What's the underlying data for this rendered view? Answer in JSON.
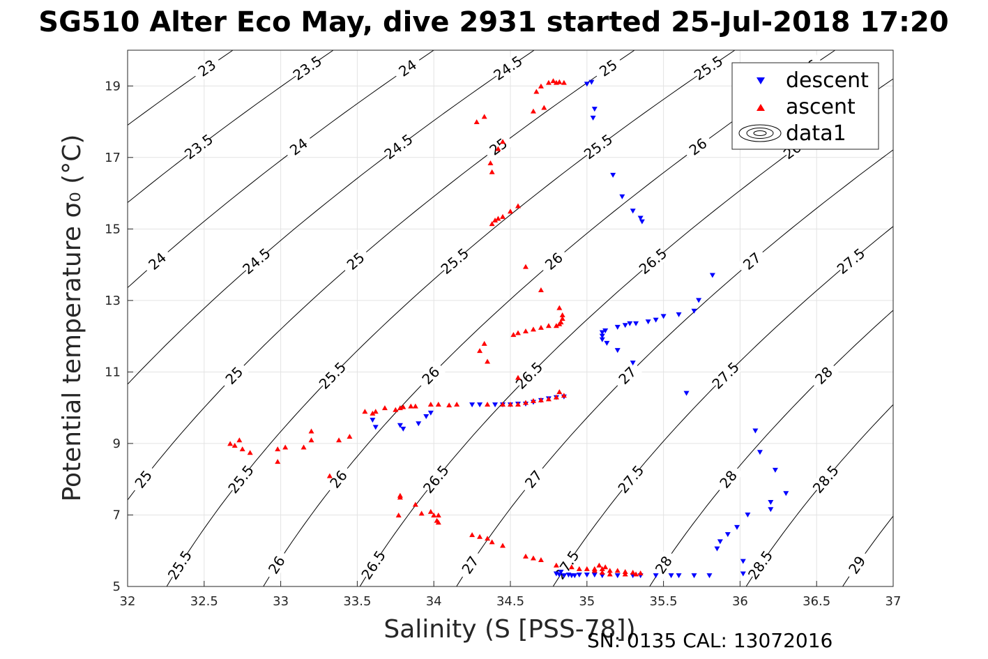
{
  "title": "SG510 Alter Eco May, dive 2931 started 25-Jul-2018 17:20",
  "footer": "SN: 0135  CAL: 13072016",
  "chart_data": {
    "type": "scatter",
    "title": "SG510 Alter Eco May, dive 2931 started 25-Jul-2018 17:20",
    "xlabel": "Salinity (S [PSS-78])",
    "ylabel": "Potential temperature σ₀ (°C)",
    "xlim": [
      32,
      37
    ],
    "ylim": [
      5,
      20
    ],
    "xticks": [
      "32",
      "32.5",
      "33",
      "33.5",
      "34",
      "34.5",
      "35",
      "35.5",
      "36",
      "36.5",
      "37"
    ],
    "yticks": [
      "5",
      "7",
      "9",
      "11",
      "13",
      "15",
      "17",
      "19"
    ],
    "grid": true,
    "legend": {
      "position": "top-right",
      "entries": [
        "descent",
        "ascent",
        "data1"
      ]
    },
    "contour_levels": [
      "23",
      "23.5",
      "24",
      "24.5",
      "25",
      "25.5",
      "26",
      "26.5",
      "27",
      "27.5",
      "28",
      "28.5",
      "29"
    ],
    "series": [
      {
        "name": "descent",
        "color": "#0000ff",
        "marker": "triangle-down",
        "points": [
          [
            35.0,
            19.05
          ],
          [
            35.03,
            19.1
          ],
          [
            35.05,
            18.35
          ],
          [
            35.04,
            18.1
          ],
          [
            35.17,
            16.5
          ],
          [
            35.23,
            15.9
          ],
          [
            35.3,
            15.5
          ],
          [
            35.35,
            15.3
          ],
          [
            35.36,
            15.2
          ],
          [
            35.82,
            13.7
          ],
          [
            35.73,
            13.0
          ],
          [
            35.7,
            12.7
          ],
          [
            35.6,
            12.6
          ],
          [
            35.5,
            12.55
          ],
          [
            35.45,
            12.45
          ],
          [
            35.4,
            12.4
          ],
          [
            35.32,
            12.35
          ],
          [
            35.28,
            12.35
          ],
          [
            35.25,
            12.3
          ],
          [
            35.2,
            12.25
          ],
          [
            35.12,
            12.15
          ],
          [
            35.1,
            12.1
          ],
          [
            35.1,
            12.0
          ],
          [
            35.1,
            11.9
          ],
          [
            35.13,
            11.8
          ],
          [
            35.2,
            11.6
          ],
          [
            35.3,
            11.25
          ],
          [
            34.85,
            10.3
          ],
          [
            34.8,
            10.28
          ],
          [
            34.75,
            10.25
          ],
          [
            34.7,
            10.2
          ],
          [
            34.65,
            10.15
          ],
          [
            34.6,
            10.1
          ],
          [
            34.55,
            10.1
          ],
          [
            34.5,
            10.08
          ],
          [
            34.45,
            10.08
          ],
          [
            34.4,
            10.08
          ],
          [
            34.3,
            10.08
          ],
          [
            34.25,
            10.08
          ],
          [
            33.9,
            9.55
          ],
          [
            33.95,
            9.75
          ],
          [
            33.98,
            9.85
          ],
          [
            33.8,
            9.4
          ],
          [
            33.78,
            9.5
          ],
          [
            33.6,
            9.65
          ],
          [
            33.62,
            9.45
          ],
          [
            35.65,
            10.4
          ],
          [
            36.1,
            9.35
          ],
          [
            36.13,
            8.75
          ],
          [
            36.23,
            8.25
          ],
          [
            36.2,
            7.35
          ],
          [
            36.2,
            7.15
          ],
          [
            36.3,
            7.6
          ],
          [
            36.05,
            7.0
          ],
          [
            35.98,
            6.65
          ],
          [
            35.92,
            6.45
          ],
          [
            35.87,
            6.25
          ],
          [
            35.85,
            6.05
          ],
          [
            36.02,
            5.7
          ],
          [
            36.02,
            5.35
          ],
          [
            35.8,
            5.3
          ],
          [
            35.7,
            5.3
          ],
          [
            35.6,
            5.3
          ],
          [
            35.55,
            5.3
          ],
          [
            35.45,
            5.3
          ],
          [
            35.35,
            5.3
          ],
          [
            35.3,
            5.3
          ],
          [
            35.2,
            5.3
          ],
          [
            35.1,
            5.3
          ],
          [
            35.05,
            5.32
          ],
          [
            35.0,
            5.32
          ],
          [
            34.95,
            5.32
          ],
          [
            34.9,
            5.3
          ],
          [
            34.85,
            5.3
          ],
          [
            34.82,
            5.32
          ],
          [
            34.8,
            5.35
          ],
          [
            34.83,
            5.4
          ],
          [
            34.88,
            5.32
          ],
          [
            34.92,
            5.3
          ]
        ]
      },
      {
        "name": "ascent",
        "color": "#ff0000",
        "marker": "triangle-up",
        "points": [
          [
            34.85,
            19.1
          ],
          [
            34.8,
            19.1
          ],
          [
            34.75,
            19.1
          ],
          [
            34.78,
            19.15
          ],
          [
            34.82,
            19.12
          ],
          [
            34.7,
            19.0
          ],
          [
            34.67,
            18.85
          ],
          [
            34.72,
            18.4
          ],
          [
            34.65,
            18.3
          ],
          [
            34.33,
            18.15
          ],
          [
            34.28,
            18.0
          ],
          [
            34.45,
            17.45
          ],
          [
            34.42,
            17.25
          ],
          [
            34.37,
            16.85
          ],
          [
            34.38,
            16.6
          ],
          [
            34.55,
            15.65
          ],
          [
            34.5,
            15.5
          ],
          [
            34.45,
            15.35
          ],
          [
            34.42,
            15.3
          ],
          [
            34.4,
            15.25
          ],
          [
            34.38,
            15.15
          ],
          [
            34.6,
            13.95
          ],
          [
            34.7,
            13.3
          ],
          [
            34.82,
            12.8
          ],
          [
            34.84,
            12.6
          ],
          [
            34.84,
            12.5
          ],
          [
            34.83,
            12.4
          ],
          [
            34.82,
            12.35
          ],
          [
            34.8,
            12.3
          ],
          [
            34.75,
            12.3
          ],
          [
            34.7,
            12.25
          ],
          [
            34.65,
            12.2
          ],
          [
            34.6,
            12.15
          ],
          [
            34.55,
            12.1
          ],
          [
            34.52,
            12.05
          ],
          [
            34.33,
            11.8
          ],
          [
            34.3,
            11.6
          ],
          [
            34.35,
            11.3
          ],
          [
            34.55,
            10.85
          ],
          [
            34.82,
            10.45
          ],
          [
            34.85,
            10.35
          ],
          [
            34.8,
            10.3
          ],
          [
            34.75,
            10.25
          ],
          [
            34.7,
            10.22
          ],
          [
            34.65,
            10.2
          ],
          [
            34.6,
            10.15
          ],
          [
            34.55,
            10.1
          ],
          [
            34.5,
            10.1
          ],
          [
            34.45,
            10.1
          ],
          [
            34.35,
            10.1
          ],
          [
            34.15,
            10.1
          ],
          [
            34.1,
            10.08
          ],
          [
            34.03,
            10.1
          ],
          [
            33.98,
            10.1
          ],
          [
            33.88,
            10.05
          ],
          [
            33.85,
            10.05
          ],
          [
            33.8,
            10.03
          ],
          [
            33.78,
            10.0
          ],
          [
            33.75,
            9.95
          ],
          [
            33.68,
            10.0
          ],
          [
            33.62,
            9.9
          ],
          [
            33.6,
            9.85
          ],
          [
            33.55,
            9.9
          ],
          [
            33.45,
            9.2
          ],
          [
            33.38,
            9.1
          ],
          [
            33.32,
            8.1
          ],
          [
            33.2,
            9.35
          ],
          [
            33.2,
            9.1
          ],
          [
            33.15,
            8.9
          ],
          [
            33.03,
            8.9
          ],
          [
            32.98,
            8.85
          ],
          [
            32.98,
            8.5
          ],
          [
            32.8,
            8.75
          ],
          [
            32.73,
            9.1
          ],
          [
            32.7,
            8.95
          ],
          [
            32.75,
            8.85
          ],
          [
            32.67,
            9.0
          ],
          [
            33.78,
            7.55
          ],
          [
            33.78,
            7.5
          ],
          [
            33.77,
            7.0
          ],
          [
            33.88,
            7.3
          ],
          [
            33.92,
            7.05
          ],
          [
            33.98,
            7.1
          ],
          [
            34.0,
            7.0
          ],
          [
            34.02,
            6.85
          ],
          [
            34.03,
            6.8
          ],
          [
            34.03,
            7.0
          ],
          [
            34.25,
            6.45
          ],
          [
            34.3,
            6.4
          ],
          [
            34.35,
            6.35
          ],
          [
            34.38,
            6.25
          ],
          [
            34.45,
            6.15
          ],
          [
            34.6,
            5.85
          ],
          [
            34.65,
            5.8
          ],
          [
            34.7,
            5.75
          ],
          [
            34.8,
            5.6
          ],
          [
            34.9,
            5.55
          ],
          [
            34.95,
            5.5
          ],
          [
            35.0,
            5.5
          ],
          [
            35.05,
            5.5
          ],
          [
            35.1,
            5.5
          ],
          [
            35.15,
            5.45
          ],
          [
            35.2,
            5.45
          ],
          [
            35.25,
            5.42
          ],
          [
            35.3,
            5.4
          ],
          [
            35.35,
            5.38
          ],
          [
            35.32,
            5.35
          ],
          [
            35.25,
            5.35
          ],
          [
            35.15,
            5.35
          ],
          [
            35.1,
            5.4
          ],
          [
            35.05,
            5.45
          ],
          [
            35.12,
            5.55
          ],
          [
            35.08,
            5.6
          ]
        ]
      }
    ]
  }
}
